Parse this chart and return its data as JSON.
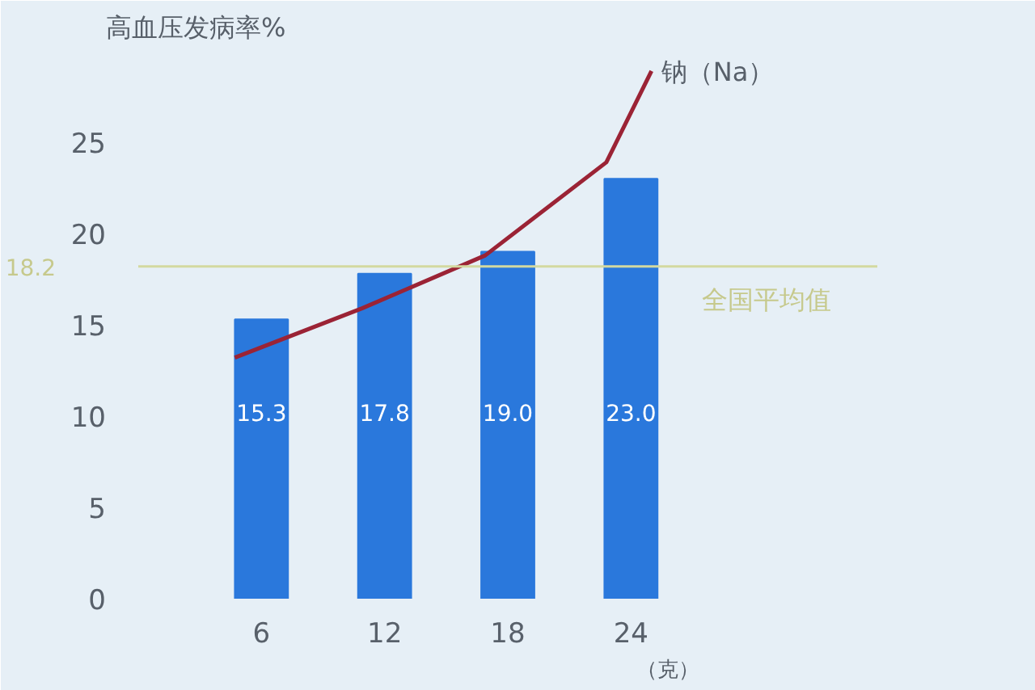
{
  "chart_data": {
    "type": "bar",
    "ylabel": "高血压发病率%",
    "xlabel": "（克）",
    "x": [
      6,
      12,
      18,
      24
    ],
    "xlim": [
      0,
      36
    ],
    "xticks": [
      6,
      12,
      18,
      24
    ],
    "ylim": [
      0,
      30
    ],
    "yticks": [
      0,
      5,
      10,
      15,
      20,
      25
    ],
    "grid": false,
    "series": [
      {
        "color": "#2a78dc",
        "values": [
          15.3,
          17.8,
          19.0,
          23.0
        ],
        "value_labels": [
          "15.3",
          "17.8",
          "19.0",
          "23.0"
        ]
      },
      {
        "type": "line",
        "name": "钠（Na）",
        "color": "#9b2335",
        "x": [
          4.7,
          10.9,
          16.9,
          22.8,
          25.0
        ],
        "values": [
          13.2,
          15.9,
          18.8,
          23.9,
          28.9
        ]
      }
    ],
    "ref_lines": [
      {
        "axis": "y",
        "value": 18.2,
        "label": "全国平均值",
        "color": "#d3d9a0"
      }
    ],
    "annotations": [
      "18.2"
    ]
  }
}
